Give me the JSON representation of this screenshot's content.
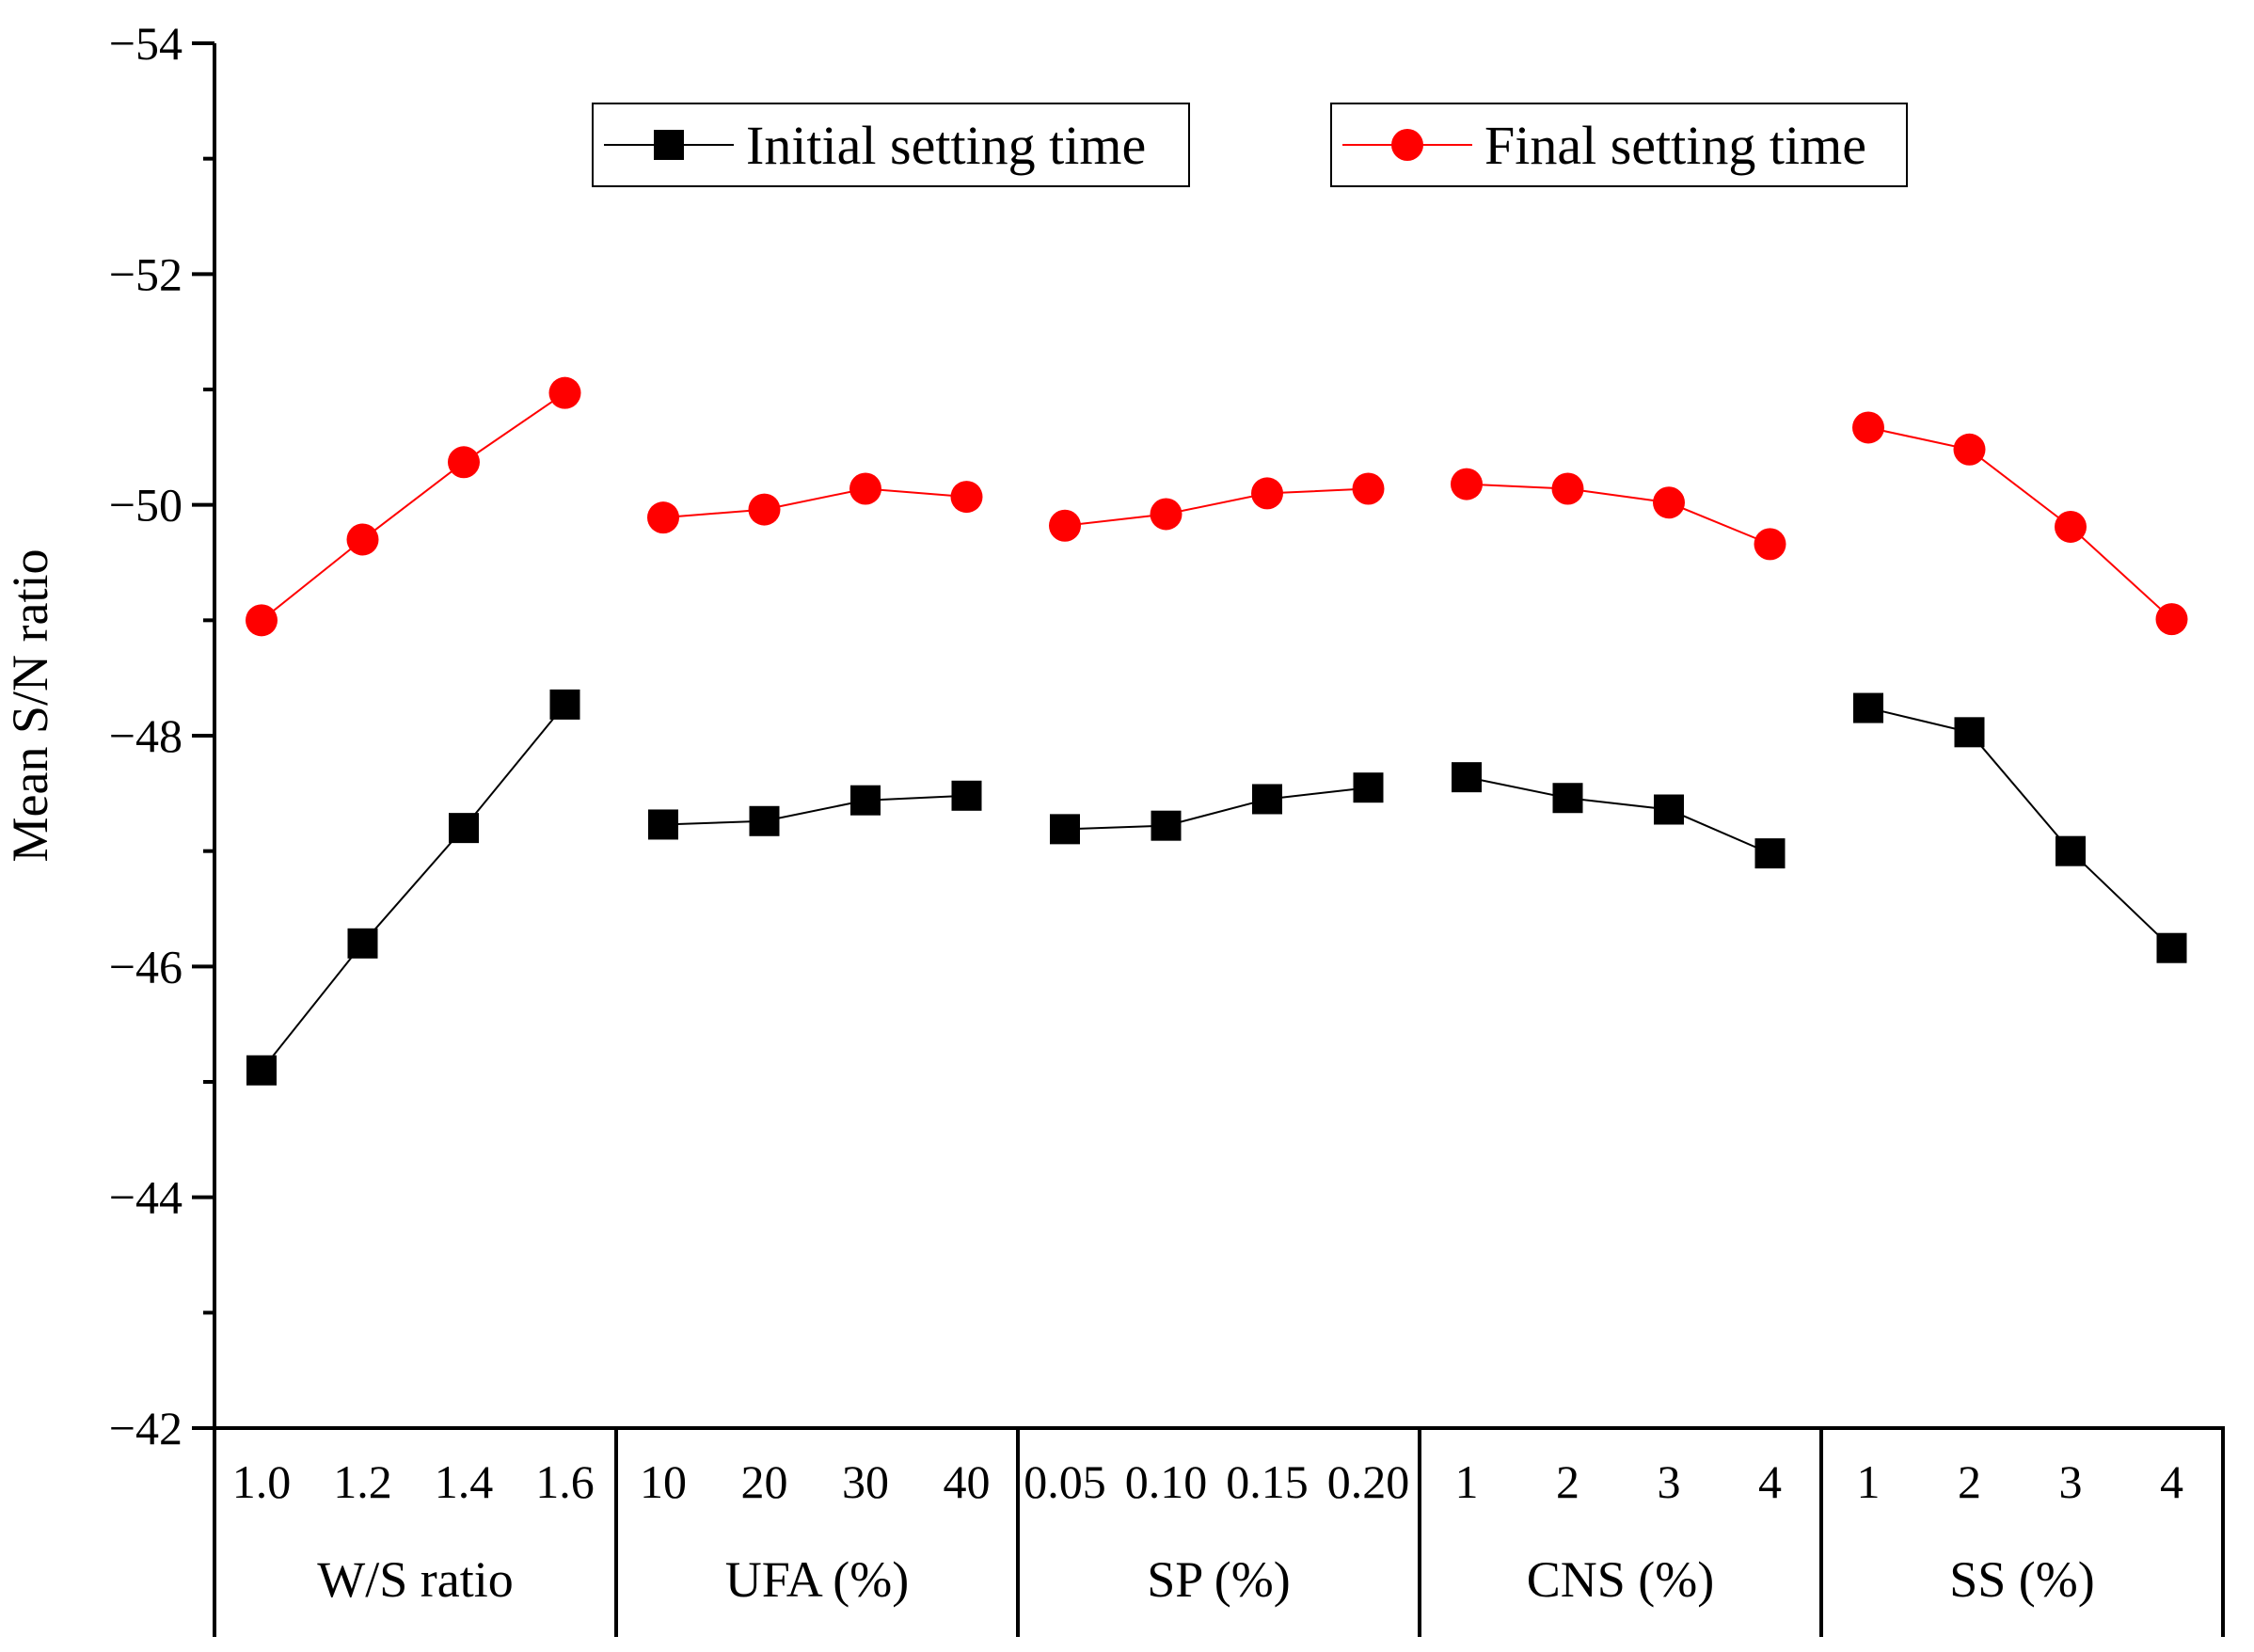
{
  "chart_data": {
    "type": "line",
    "ylabel": "Mean S/N ratio",
    "ylim": [
      -54,
      -42
    ],
    "y_reversed": true,
    "y_ticks": [
      "−54",
      "−52",
      "−50",
      "−48",
      "−46",
      "−44",
      "−42"
    ],
    "groups": [
      {
        "label": "W/S ratio",
        "levels": [
          "1.0",
          "1.2",
          "1.4",
          "1.6"
        ]
      },
      {
        "label": "UFA (%)",
        "levels": [
          "10",
          "20",
          "30",
          "40"
        ]
      },
      {
        "label": "SP (%)",
        "levels": [
          "0.05",
          "0.10",
          "0.15",
          "0.20"
        ]
      },
      {
        "label": "CNS (%)",
        "levels": [
          "1",
          "2",
          "3",
          "4"
        ]
      },
      {
        "label": "SS (%)",
        "levels": [
          "1",
          "2",
          "3",
          "4"
        ]
      }
    ],
    "series": [
      {
        "name": "Initial setting time",
        "color": "#000000",
        "marker": "square",
        "values": [
          [
            -45.1,
            -46.2,
            -47.2,
            -48.27
          ],
          [
            -47.23,
            -47.26,
            -47.44,
            -47.48
          ],
          [
            -47.19,
            -47.22,
            -47.45,
            -47.55
          ],
          [
            -47.64,
            -47.46,
            -47.36,
            -46.98
          ],
          [
            -48.24,
            -48.03,
            -47.0,
            -46.16
          ]
        ]
      },
      {
        "name": "Final setting time",
        "color": "#ff0000",
        "marker": "circle",
        "values": [
          [
            -49.0,
            -49.7,
            -50.37,
            -50.97
          ],
          [
            -49.89,
            -49.96,
            -50.14,
            -50.07
          ],
          [
            -49.82,
            -49.92,
            -50.1,
            -50.14
          ],
          [
            -50.18,
            -50.14,
            -50.02,
            -49.66
          ],
          [
            -50.67,
            -50.48,
            -49.81,
            -49.01
          ]
        ]
      }
    ],
    "legend": "top-center"
  }
}
